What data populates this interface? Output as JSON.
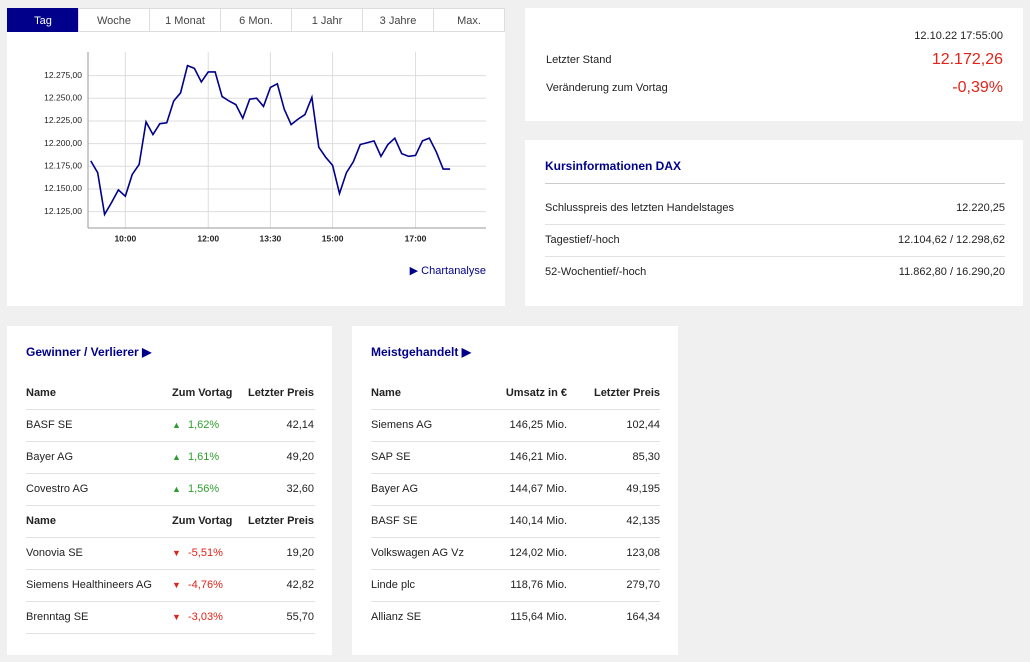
{
  "tabs": [
    "Tag",
    "Woche",
    "1 Monat",
    "6 Mon.",
    "1 Jahr",
    "3 Jahre",
    "Max."
  ],
  "active_tab": 0,
  "chart_data": {
    "type": "line",
    "color": "#00008b",
    "x": [
      "09:10",
      "09:20",
      "09:30",
      "09:40",
      "09:50",
      "10:00",
      "10:10",
      "10:20",
      "10:30",
      "10:40",
      "10:50",
      "11:00",
      "11:10",
      "11:20",
      "11:30",
      "11:40",
      "11:50",
      "12:00",
      "12:10",
      "12:20",
      "12:30",
      "12:40",
      "12:50",
      "13:00",
      "13:10",
      "13:20",
      "13:30",
      "13:40",
      "13:50",
      "14:00",
      "14:10",
      "14:20",
      "14:30",
      "14:40",
      "14:50",
      "15:00",
      "15:10",
      "15:20",
      "15:30",
      "15:40",
      "15:50",
      "16:00",
      "16:10",
      "16:20",
      "16:30",
      "16:40",
      "16:50",
      "17:00",
      "17:10",
      "17:20",
      "17:30",
      "17:40",
      "17:50"
    ],
    "values": [
      12181,
      12168,
      12122,
      12135,
      12149,
      12142,
      12166,
      12177,
      12224,
      12210,
      12222,
      12223,
      12247,
      12256,
      12286,
      12283,
      12268,
      12279,
      12279,
      12252,
      12247,
      12243,
      12228,
      12249,
      12250,
      12241,
      12262,
      12266,
      12238,
      12221,
      12227,
      12232,
      12251,
      12196,
      12185,
      12176,
      12145,
      12168,
      12180,
      12199,
      12201,
      12203,
      12186,
      12199,
      12206,
      12189,
      12186,
      12187,
      12203,
      12206,
      12191,
      12172,
      12172
    ],
    "xlim": [
      "09:06",
      "18:42"
    ],
    "xticks": [
      "10:00",
      "12:00",
      "13:30",
      "15:00",
      "17:00"
    ],
    "ylim": [
      12107,
      12301
    ],
    "yticks": [
      {
        "value": 12125,
        "label": "12.125,00"
      },
      {
        "value": 12150,
        "label": "12.150,00"
      },
      {
        "value": 12175,
        "label": "12.175,00"
      },
      {
        "value": 12200,
        "label": "12.200,00"
      },
      {
        "value": 12225,
        "label": "12.225,00"
      },
      {
        "value": 12250,
        "label": "12.250,00"
      },
      {
        "value": 12275,
        "label": "12.275,00"
      }
    ],
    "grid": true
  },
  "chart_link": "Chartanalyse",
  "quote": {
    "timestamp": "12.10.22 17:55:00",
    "last_label": "Letzter Stand",
    "last_value": "12.172,26",
    "change_label": "Veränderung zum Vortag",
    "change_value": "-0,39%"
  },
  "info": {
    "title": "Kursinformationen DAX",
    "rows": [
      [
        "Schlusspreis des letzten Handelstages",
        "12.220,25"
      ],
      [
        "Tagestief/-hoch",
        "12.104,62 / 12.298,62"
      ],
      [
        "52-Wochentief/-hoch",
        "11.862,80 / 16.290,20"
      ]
    ]
  },
  "movers": {
    "title": "Gewinner / Verlierer",
    "gainers_header": [
      "Name",
      "Zum Vortag",
      "Letzter Preis"
    ],
    "gainers": [
      [
        "BASF SE",
        "1,62%",
        "42,14"
      ],
      [
        "Bayer AG",
        "1,61%",
        "49,20"
      ],
      [
        "Covestro AG",
        "1,56%",
        "32,60"
      ]
    ],
    "losers_header": [
      "Name",
      "Zum Vortag",
      "Letzter Preis"
    ],
    "losers": [
      [
        "Vonovia SE",
        "-5,51%",
        "19,20"
      ],
      [
        "Siemens Healthineers AG",
        "-4,76%",
        "42,82"
      ],
      [
        "Brenntag SE",
        "-3,03%",
        "55,70"
      ]
    ]
  },
  "most_traded": {
    "title": "Meistgehandelt",
    "header": [
      "Name",
      "Umsatz in €",
      "Letzter Preis"
    ],
    "rows": [
      [
        "Siemens AG",
        "146,25 Mio.",
        "102,44"
      ],
      [
        "SAP SE",
        "146,21 Mio.",
        "85,30"
      ],
      [
        "Bayer AG",
        "144,67 Mio.",
        "49,195"
      ],
      [
        "BASF SE",
        "140,14 Mio.",
        "42,135"
      ],
      [
        "Volkswagen AG Vz",
        "124,02 Mio.",
        "123,08"
      ],
      [
        "Linde plc",
        "118,76 Mio.",
        "279,70"
      ],
      [
        "Allianz SE",
        "115,64 Mio.",
        "164,34"
      ]
    ]
  }
}
